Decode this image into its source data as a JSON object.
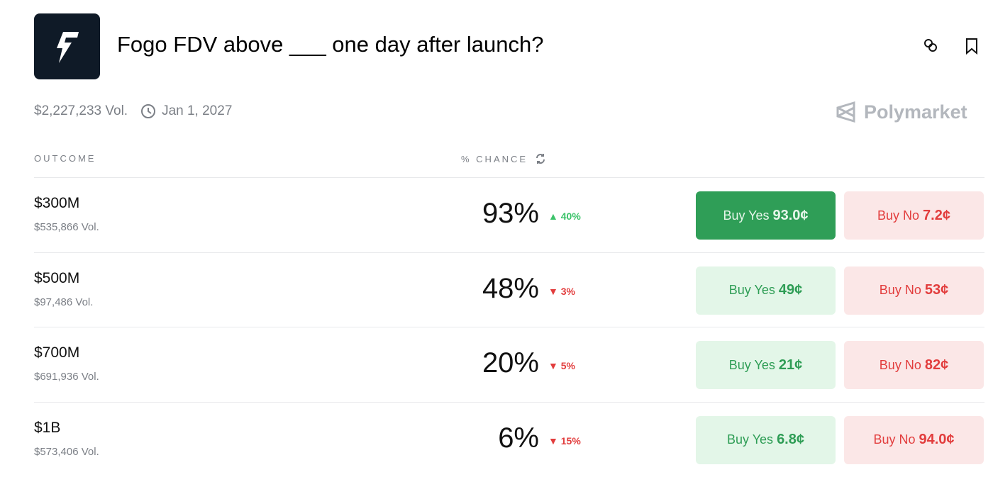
{
  "header": {
    "title": "Fogo FDV above ___ one day after launch?",
    "logo_icon": "lightning-bolt-icon",
    "link_icon": "link-icon",
    "bookmark_icon": "bookmark-icon"
  },
  "meta": {
    "volume": "$2,227,233 Vol.",
    "end_date": "Jan 1, 2027",
    "clock_icon": "clock-icon"
  },
  "brand": {
    "name": "Polymarket"
  },
  "columns": {
    "outcome": "OUTCOME",
    "chance": "% CHANCE",
    "refresh_icon": "refresh-icon"
  },
  "colors": {
    "green": "#2f9e57",
    "red": "#e23d3d",
    "up": "#3cc36a"
  },
  "outcomes": [
    {
      "name": "$300M",
      "volume": "$535,866 Vol.",
      "chance": "93%",
      "delta": "40%",
      "direction": "up",
      "yes_label": "Buy Yes",
      "yes_price": "93.0¢",
      "no_label": "Buy No",
      "no_price": "7.2¢",
      "selected": true
    },
    {
      "name": "$500M",
      "volume": "$97,486 Vol.",
      "chance": "48%",
      "delta": "3%",
      "direction": "down",
      "yes_label": "Buy Yes",
      "yes_price": "49¢",
      "no_label": "Buy No",
      "no_price": "53¢",
      "selected": false
    },
    {
      "name": "$700M",
      "volume": "$691,936 Vol.",
      "chance": "20%",
      "delta": "5%",
      "direction": "down",
      "yes_label": "Buy Yes",
      "yes_price": "21¢",
      "no_label": "Buy No",
      "no_price": "82¢",
      "selected": false
    },
    {
      "name": "$1B",
      "volume": "$573,406 Vol.",
      "chance": "6%",
      "delta": "15%",
      "direction": "down",
      "yes_label": "Buy Yes",
      "yes_price": "6.8¢",
      "no_label": "Buy No",
      "no_price": "94.0¢",
      "selected": false
    }
  ]
}
